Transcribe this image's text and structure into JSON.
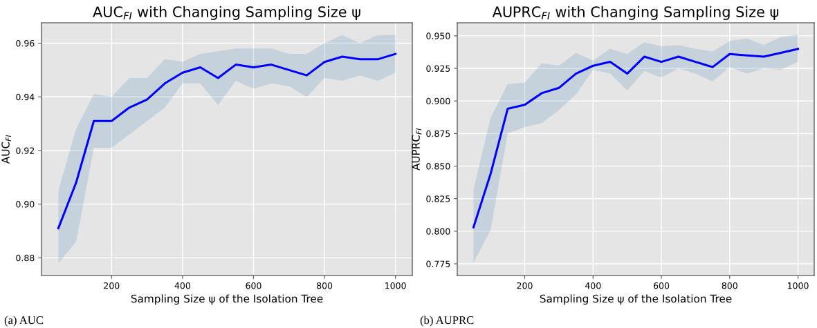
{
  "chart_data": [
    {
      "type": "line",
      "title": "AUC$_{FI}$ with Changing Sampling Size ψ",
      "xlabel": "Sampling Size ψ of the Isolation Tree",
      "ylabel": "AUC$_{FI}$",
      "x": [
        50,
        100,
        150,
        200,
        250,
        300,
        350,
        400,
        450,
        500,
        550,
        600,
        650,
        700,
        750,
        800,
        850,
        900,
        950,
        1000
      ],
      "series": [
        {
          "color": "#0000ff",
          "values": [
            0.891,
            0.908,
            0.931,
            0.931,
            0.936,
            0.939,
            0.945,
            0.949,
            0.951,
            0.947,
            0.952,
            0.951,
            0.952,
            0.95,
            0.948,
            0.953,
            0.955,
            0.954,
            0.954,
            0.956
          ],
          "lower": [
            0.878,
            0.886,
            0.921,
            0.921,
            0.926,
            0.931,
            0.936,
            0.945,
            0.945,
            0.937,
            0.946,
            0.943,
            0.945,
            0.944,
            0.94,
            0.947,
            0.946,
            0.948,
            0.946,
            0.949
          ],
          "upper": [
            0.905,
            0.928,
            0.941,
            0.94,
            0.947,
            0.947,
            0.954,
            0.953,
            0.956,
            0.957,
            0.958,
            0.958,
            0.958,
            0.956,
            0.956,
            0.96,
            0.963,
            0.96,
            0.963,
            0.963
          ]
        }
      ],
      "xlim": [
        2.5,
        1047.5
      ],
      "xticks": [
        200,
        400,
        600,
        800,
        1000
      ],
      "ylim": [
        0.8734,
        0.9676
      ],
      "yticks": [
        {
          "value": 0.88,
          "label": "0.88"
        },
        {
          "value": 0.9,
          "label": "0.90"
        },
        {
          "value": 0.92,
          "label": "0.92"
        },
        {
          "value": 0.94,
          "label": "0.94"
        },
        {
          "value": 0.96,
          "label": "0.96"
        }
      ],
      "grid": true,
      "annotations": [
        "(a) AUC"
      ]
    },
    {
      "type": "line",
      "title": "AUPRC$_{FI}$ with Changing Sampling Size ψ",
      "xlabel": "Sampling Size ψ of the Isolation Tree",
      "ylabel": "AUPRC$_{FI}$",
      "x": [
        50,
        100,
        150,
        200,
        250,
        300,
        350,
        400,
        450,
        500,
        550,
        600,
        650,
        700,
        750,
        800,
        850,
        900,
        950,
        1000
      ],
      "series": [
        {
          "color": "#0000ff",
          "values": [
            0.803,
            0.844,
            0.894,
            0.897,
            0.906,
            0.91,
            0.921,
            0.927,
            0.93,
            0.921,
            0.934,
            0.93,
            0.934,
            0.93,
            0.926,
            0.936,
            0.935,
            0.934,
            0.937,
            0.94
          ],
          "lower": [
            0.776,
            0.801,
            0.875,
            0.88,
            0.883,
            0.893,
            0.905,
            0.924,
            0.921,
            0.908,
            0.923,
            0.918,
            0.925,
            0.921,
            0.915,
            0.926,
            0.921,
            0.925,
            0.924,
            0.93
          ],
          "upper": [
            0.832,
            0.887,
            0.913,
            0.914,
            0.929,
            0.927,
            0.937,
            0.931,
            0.94,
            0.936,
            0.945,
            0.942,
            0.943,
            0.94,
            0.938,
            0.946,
            0.948,
            0.943,
            0.949,
            0.951
          ]
        }
      ],
      "xlim": [
        2.5,
        1047.5
      ],
      "xticks": [
        200,
        400,
        600,
        800,
        1000
      ],
      "ylim": [
        0.766,
        0.96
      ],
      "yticks": [
        {
          "value": 0.775,
          "label": "0.775"
        },
        {
          "value": 0.8,
          "label": "0.800"
        },
        {
          "value": 0.825,
          "label": "0.825"
        },
        {
          "value": 0.85,
          "label": "0.850"
        },
        {
          "value": 0.875,
          "label": "0.875"
        },
        {
          "value": 0.9,
          "label": "0.900"
        },
        {
          "value": 0.925,
          "label": "0.925"
        },
        {
          "value": 0.95,
          "label": "0.950"
        }
      ],
      "grid": true,
      "annotations": [
        "(b) AUPRC"
      ]
    }
  ]
}
